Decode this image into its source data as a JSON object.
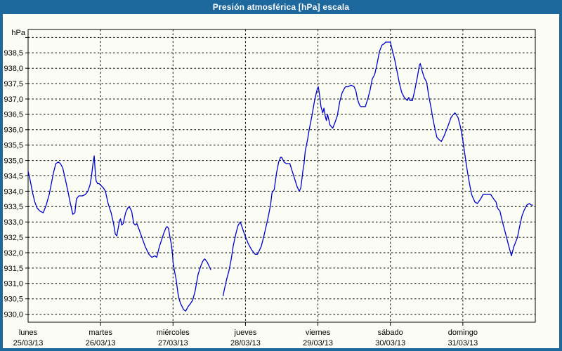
{
  "window": {
    "title": "Presión atmosférica [hPa] escala"
  },
  "chart_data": {
    "type": "line",
    "title": "Presión atmosférica [hPa] escala",
    "ylabel": "hPa",
    "legend": "none",
    "grid": "dashed",
    "colors": {
      "frame": "#1D689C",
      "panel": "#FBFDF5",
      "grid": "#000000",
      "line": "#0000CD",
      "text": "#000000",
      "title_text": "#FFFFFF"
    },
    "x_axis": {
      "hours_total": 168,
      "day_ticks": [
        {
          "name": "lunes",
          "date": "25/03/13",
          "t": 0
        },
        {
          "name": "martes",
          "date": "26/03/13",
          "t": 24
        },
        {
          "name": "miércoles",
          "date": "27/03/13",
          "t": 48
        },
        {
          "name": "jueves",
          "date": "28/03/13",
          "t": 72
        },
        {
          "name": "viernes",
          "date": "29/03/13",
          "t": 96
        },
        {
          "name": "sábado",
          "date": "30/03/13",
          "t": 120
        },
        {
          "name": "domingo",
          "date": "31/03/13",
          "t": 144
        }
      ]
    },
    "y_axis": {
      "min": 929.74,
      "max": 939.26,
      "unit": "hPa",
      "ticks": [
        {
          "value": 939.0,
          "label": ""
        },
        {
          "value": 938.5,
          "label": "938,5"
        },
        {
          "value": 938.0,
          "label": "938,0"
        },
        {
          "value": 937.5,
          "label": "937,5"
        },
        {
          "value": 937.0,
          "label": "937,0"
        },
        {
          "value": 936.5,
          "label": "936,5"
        },
        {
          "value": 936.0,
          "label": "936,0"
        },
        {
          "value": 935.5,
          "label": "935,5"
        },
        {
          "value": 935.0,
          "label": "935,0"
        },
        {
          "value": 934.5,
          "label": "934,5"
        },
        {
          "value": 934.0,
          "label": "934,0"
        },
        {
          "value": 933.5,
          "label": "933,5"
        },
        {
          "value": 933.0,
          "label": "933,0"
        },
        {
          "value": 932.5,
          "label": "932,5"
        },
        {
          "value": 932.0,
          "label": "932,0"
        },
        {
          "value": 931.5,
          "label": "931,5"
        },
        {
          "value": 931.0,
          "label": "931,0"
        },
        {
          "value": 930.5,
          "label": "930,5"
        },
        {
          "value": 930.0,
          "label": "930,0"
        }
      ]
    },
    "series": [
      {
        "name": "Presión atmosférica",
        "unit": "hPa",
        "color": "#0000CD",
        "segments": [
          [
            [
              0,
              934.65
            ],
            [
              0.7,
              934.35
            ],
            [
              1.5,
              933.95
            ],
            [
              2.2,
              933.65
            ],
            [
              3,
              933.45
            ],
            [
              4,
              933.35
            ],
            [
              5,
              933.3
            ],
            [
              6,
              933.55
            ],
            [
              7,
              933.9
            ],
            [
              7.7,
              934.25
            ],
            [
              8.4,
              934.6
            ],
            [
              9.2,
              934.9
            ],
            [
              10,
              934.95
            ],
            [
              10.7,
              934.9
            ],
            [
              11.5,
              934.75
            ],
            [
              12.3,
              934.4
            ],
            [
              13.2,
              934.0
            ],
            [
              14,
              933.6
            ],
            [
              14.8,
              933.25
            ],
            [
              15.5,
              933.3
            ],
            [
              16,
              933.75
            ],
            [
              16.8,
              933.85
            ],
            [
              18,
              933.85
            ],
            [
              19,
              933.9
            ],
            [
              19.8,
              934.0
            ],
            [
              20.5,
              934.2
            ],
            [
              21,
              934.5
            ],
            [
              21.5,
              934.9
            ],
            [
              21.9,
              935.15
            ],
            [
              22.2,
              934.7
            ],
            [
              22.5,
              934.35
            ],
            [
              23,
              934.25
            ],
            [
              23.5,
              934.25
            ],
            [
              24,
              934.2
            ],
            [
              25,
              934.1
            ],
            [
              25.6,
              934.0
            ],
            [
              26.5,
              933.6
            ],
            [
              27.5,
              933.3
            ],
            [
              28.3,
              932.95
            ],
            [
              28.9,
              932.6
            ],
            [
              29.4,
              932.55
            ],
            [
              30.3,
              933.05
            ],
            [
              30.6,
              933.1
            ],
            [
              31,
              932.9
            ],
            [
              31.5,
              932.95
            ],
            [
              32.3,
              933.3
            ],
            [
              33,
              933.45
            ],
            [
              33.5,
              933.5
            ],
            [
              34.3,
              933.35
            ],
            [
              35,
              932.95
            ],
            [
              35.5,
              932.9
            ],
            [
              36,
              932.95
            ],
            [
              36.6,
              932.8
            ],
            [
              37.7,
              932.5
            ],
            [
              38.8,
              932.2
            ],
            [
              40,
              931.95
            ],
            [
              41,
              931.85
            ],
            [
              42,
              931.9
            ],
            [
              42.6,
              931.85
            ],
            [
              43.5,
              932.2
            ],
            [
              44.5,
              932.5
            ],
            [
              45,
              932.65
            ],
            [
              45.6,
              932.8
            ],
            [
              46,
              932.85
            ],
            [
              46.5,
              932.8
            ],
            [
              47,
              932.5
            ],
            [
              47.4,
              932.3
            ],
            [
              47.8,
              932.0
            ],
            [
              48,
              931.7
            ],
            [
              48.5,
              931.4
            ],
            [
              49,
              931.15
            ],
            [
              49.6,
              930.7
            ],
            [
              50,
              930.5
            ],
            [
              50.5,
              930.35
            ],
            [
              51,
              930.25
            ],
            [
              51.5,
              930.15
            ],
            [
              52.2,
              930.1
            ],
            [
              53,
              930.25
            ],
            [
              53.8,
              930.35
            ],
            [
              54.5,
              930.45
            ],
            [
              55.3,
              930.75
            ],
            [
              56.3,
              931.3
            ],
            [
              57.3,
              931.6
            ],
            [
              58,
              931.75
            ],
            [
              58.5,
              931.8
            ],
            [
              59.3,
              931.7
            ],
            [
              60,
              931.55
            ],
            [
              60.5,
              931.45
            ]
          ],
          [
            [
              64.6,
              930.6
            ],
            [
              65,
              930.8
            ],
            [
              65.8,
              931.15
            ],
            [
              66.5,
              931.4
            ],
            [
              67.3,
              931.8
            ],
            [
              68,
              932.25
            ],
            [
              68.9,
              932.65
            ],
            [
              69.6,
              932.9
            ],
            [
              70.3,
              933.0
            ],
            [
              71,
              932.8
            ],
            [
              71.5,
              932.65
            ],
            [
              72.3,
              932.45
            ],
            [
              72.9,
              932.3
            ],
            [
              74,
              932.1
            ],
            [
              75.2,
              931.95
            ],
            [
              76,
              931.95
            ],
            [
              77.2,
              932.2
            ],
            [
              78,
              932.5
            ],
            [
              78.7,
              932.8
            ],
            [
              79.5,
              933.15
            ],
            [
              80.3,
              933.55
            ],
            [
              80.8,
              933.95
            ],
            [
              81.5,
              934.05
            ],
            [
              82.3,
              934.6
            ],
            [
              83,
              934.95
            ],
            [
              83.6,
              935.1
            ],
            [
              84,
              935.1
            ],
            [
              84.8,
              934.95
            ],
            [
              85.5,
              934.9
            ],
            [
              86.7,
              934.9
            ],
            [
              87.5,
              934.65
            ],
            [
              88.3,
              934.4
            ],
            [
              89.1,
              934.15
            ],
            [
              89.8,
              934.0
            ],
            [
              90.3,
              934.1
            ],
            [
              90.7,
              934.4
            ],
            [
              91,
              934.65
            ],
            [
              91.4,
              934.9
            ],
            [
              91.8,
              935.3
            ],
            [
              92.2,
              935.5
            ],
            [
              92.6,
              935.7
            ],
            [
              93,
              935.95
            ],
            [
              93.4,
              936.15
            ],
            [
              94.1,
              936.5
            ],
            [
              94.9,
              936.95
            ],
            [
              95.7,
              937.3
            ],
            [
              96.1,
              937.4
            ],
            [
              96.6,
              937.1
            ],
            [
              97,
              936.75
            ],
            [
              97.6,
              936.55
            ],
            [
              98,
              936.7
            ],
            [
              98.4,
              936.45
            ],
            [
              98.8,
              936.3
            ],
            [
              99.2,
              936.5
            ],
            [
              100,
              936.15
            ],
            [
              100.9,
              936.05
            ],
            [
              101.7,
              936.25
            ],
            [
              102.4,
              936.45
            ],
            [
              103.2,
              936.9
            ],
            [
              104,
              937.2
            ],
            [
              104.8,
              937.35
            ],
            [
              105.2,
              937.4
            ],
            [
              106,
              937.4
            ],
            [
              107,
              937.45
            ],
            [
              108,
              937.4
            ],
            [
              108.6,
              937.25
            ],
            [
              109,
              937.05
            ],
            [
              109.4,
              936.9
            ],
            [
              109.8,
              936.8
            ],
            [
              110.2,
              936.75
            ],
            [
              111.7,
              936.75
            ],
            [
              112.5,
              937.0
            ],
            [
              113.3,
              937.3
            ],
            [
              114,
              937.65
            ],
            [
              114.8,
              937.8
            ],
            [
              115.6,
              938.15
            ],
            [
              116.4,
              938.55
            ],
            [
              117.2,
              938.75
            ],
            [
              118,
              938.8
            ],
            [
              118.4,
              938.85
            ],
            [
              119.6,
              938.85
            ],
            [
              120,
              938.85
            ],
            [
              120.6,
              938.6
            ],
            [
              121.4,
              938.3
            ],
            [
              122.2,
              937.9
            ],
            [
              123,
              937.5
            ],
            [
              123.8,
              937.2
            ],
            [
              124.6,
              937.05
            ],
            [
              125.6,
              936.95
            ],
            [
              126.1,
              937.05
            ],
            [
              126.5,
              936.95
            ],
            [
              127.3,
              936.95
            ],
            [
              128,
              937.25
            ],
            [
              128.9,
              937.7
            ],
            [
              129.6,
              938.1
            ],
            [
              129.9,
              938.15
            ],
            [
              130.4,
              937.95
            ],
            [
              131.2,
              937.7
            ],
            [
              132,
              937.55
            ],
            [
              132.7,
              937.1
            ],
            [
              133.5,
              936.7
            ],
            [
              133.9,
              936.45
            ],
            [
              134.6,
              936.1
            ],
            [
              135.4,
              935.75
            ],
            [
              136.4,
              935.65
            ],
            [
              136.9,
              935.62
            ],
            [
              137.8,
              935.8
            ],
            [
              139,
              936.1
            ],
            [
              140.1,
              936.4
            ],
            [
              140.9,
              936.5
            ],
            [
              141.4,
              936.55
            ],
            [
              142.4,
              936.4
            ],
            [
              143.2,
              936.1
            ],
            [
              144,
              935.65
            ],
            [
              144.6,
              935.25
            ],
            [
              145.4,
              934.7
            ],
            [
              146.2,
              934.25
            ],
            [
              146.9,
              933.9
            ],
            [
              147.3,
              933.8
            ],
            [
              148,
              933.65
            ],
            [
              148.8,
              933.6
            ],
            [
              149.9,
              933.75
            ],
            [
              150.7,
              933.9
            ],
            [
              151.4,
              933.9
            ],
            [
              153.2,
              933.9
            ],
            [
              154.2,
              933.75
            ],
            [
              155,
              933.65
            ],
            [
              155.5,
              933.45
            ],
            [
              156.3,
              933.35
            ],
            [
              157,
              933.05
            ],
            [
              157.8,
              932.75
            ],
            [
              158.6,
              932.45
            ],
            [
              159.4,
              932.15
            ],
            [
              159.8,
              932.0
            ],
            [
              160.1,
              931.9
            ],
            [
              160.9,
              932.2
            ],
            [
              161.3,
              932.3
            ],
            [
              162.1,
              932.5
            ],
            [
              162.9,
              932.9
            ],
            [
              163.6,
              933.2
            ],
            [
              164.4,
              933.4
            ],
            [
              165.2,
              933.55
            ],
            [
              166,
              933.6
            ],
            [
              166.7,
              933.55
            ],
            [
              167.1,
              933.55
            ]
          ]
        ]
      }
    ]
  }
}
